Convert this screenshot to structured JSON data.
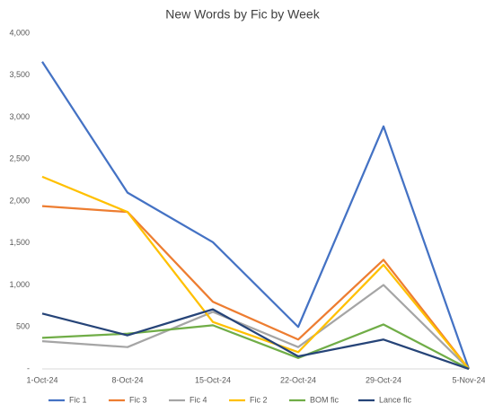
{
  "chart_data": {
    "type": "line",
    "title": "New Words by Fic by Week",
    "categories": [
      "1-Oct-24",
      "8-Oct-24",
      "15-Oct-24",
      "22-Oct-24",
      "29-Oct-24",
      "5-Nov-24"
    ],
    "series": [
      {
        "name": "Fic 1",
        "color": "#4472c4",
        "values": [
          3660,
          2100,
          1510,
          500,
          2890,
          0
        ]
      },
      {
        "name": "Fic 3",
        "color": "#ed7d31",
        "values": [
          1940,
          1870,
          800,
          350,
          1300,
          0
        ]
      },
      {
        "name": "Fic 4",
        "color": "#a5a5a5",
        "values": [
          330,
          260,
          680,
          260,
          1000,
          0
        ]
      },
      {
        "name": "Fic 2",
        "color": "#ffc000",
        "values": [
          2290,
          1870,
          560,
          200,
          1240,
          0
        ]
      },
      {
        "name": "BOM fic",
        "color": "#70ad47",
        "values": [
          370,
          420,
          520,
          130,
          530,
          0
        ]
      },
      {
        "name": "Lance fic",
        "color": "#264478",
        "values": [
          660,
          400,
          710,
          150,
          350,
          0
        ]
      }
    ],
    "ylim": [
      0,
      4000
    ],
    "yticks": [
      {
        "value": 0,
        "label": "-"
      },
      500,
      {
        "value": 1000,
        "label": "1,000"
      },
      {
        "value": 1500,
        "label": "1,500"
      },
      {
        "value": 2000,
        "label": "2,000"
      },
      {
        "value": 2500,
        "label": "2,500"
      },
      {
        "value": 3000,
        "label": "3,000"
      },
      {
        "value": 3500,
        "label": "3,500"
      },
      {
        "value": 4000,
        "label": "4,000"
      }
    ],
    "legend": "bottom"
  }
}
